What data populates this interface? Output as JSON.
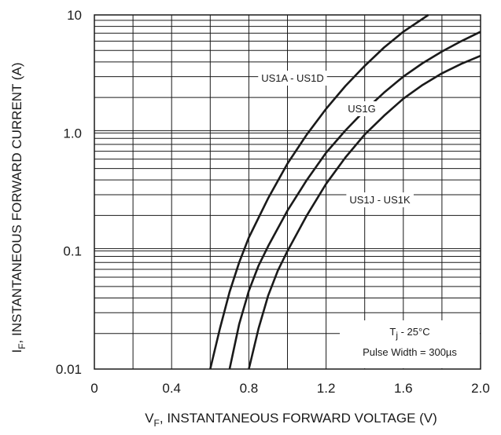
{
  "chart_data": {
    "type": "line",
    "x_scale": "linear",
    "y_scale": "log",
    "xlim": [
      0,
      2.0
    ],
    "ylim": [
      0.01,
      10
    ],
    "x_ticks": [
      "0",
      "0.4",
      "0.8",
      "1.2",
      "1.6",
      "2.0"
    ],
    "x_tick_values": [
      0,
      0.4,
      0.8,
      1.2,
      1.6,
      2.0
    ],
    "y_ticks": [
      "10",
      "1.0",
      "0.1",
      "0.01"
    ],
    "y_tick_values": [
      10,
      1.0,
      0.1,
      0.01
    ],
    "xlabel": {
      "prefix": "V",
      "sub": "F",
      "suffix": ", INSTANTANEOUS FORWARD VOLTAGE (V)"
    },
    "ylabel": {
      "prefix": "I",
      "sub": "F",
      "suffix": ", INSTANTANEOUS FORWARD CURRENT (A)"
    },
    "grid": true,
    "series": [
      {
        "name": "US1A - US1D",
        "x": [
          0.6,
          0.65,
          0.7,
          0.75,
          0.8,
          0.9,
          1.0,
          1.1,
          1.2,
          1.3,
          1.4,
          1.5,
          1.6,
          1.73
        ],
        "y": [
          0.01,
          0.022,
          0.045,
          0.08,
          0.13,
          0.28,
          0.55,
          0.97,
          1.6,
          2.5,
          3.7,
          5.3,
          7.2,
          10
        ]
      },
      {
        "name": "US1G",
        "x": [
          0.7,
          0.75,
          0.8,
          0.85,
          0.9,
          1.0,
          1.1,
          1.2,
          1.3,
          1.4,
          1.5,
          1.6,
          1.7,
          1.8,
          1.9,
          2.0
        ],
        "y": [
          0.01,
          0.024,
          0.046,
          0.075,
          0.11,
          0.22,
          0.4,
          0.68,
          1.05,
          1.55,
          2.2,
          3.0,
          3.9,
          4.9,
          6.0,
          7.2
        ]
      },
      {
        "name": "US1J - US1K",
        "x": [
          0.8,
          0.85,
          0.9,
          0.95,
          1.0,
          1.1,
          1.2,
          1.3,
          1.4,
          1.5,
          1.6,
          1.7,
          1.8,
          1.9,
          2.0
        ],
        "y": [
          0.01,
          0.022,
          0.042,
          0.068,
          0.1,
          0.2,
          0.37,
          0.62,
          0.97,
          1.4,
          1.95,
          2.55,
          3.2,
          3.85,
          4.5
        ]
      }
    ],
    "annotations": {
      "temp_prefix": "T",
      "temp_sub": "j",
      "temp_suffix": " - 25°C",
      "pulse": "Pulse Width = 300µs"
    }
  }
}
